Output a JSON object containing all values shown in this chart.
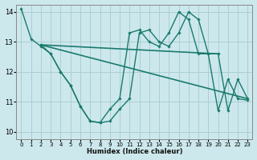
{
  "xlabel": "Humidex (Indice chaleur)",
  "background_color": "#cce8ec",
  "line_color": "#1a7a6e",
  "grid_color": "#aacfd4",
  "xlim": [
    -0.5,
    23.5
  ],
  "ylim": [
    9.75,
    14.25
  ],
  "yticks": [
    10,
    11,
    12,
    13,
    14
  ],
  "xticks": [
    0,
    1,
    2,
    3,
    4,
    5,
    6,
    7,
    8,
    9,
    10,
    11,
    12,
    13,
    14,
    15,
    16,
    17,
    18,
    19,
    20,
    21,
    22,
    23
  ],
  "line_zigzag1": {
    "x": [
      0,
      1,
      2,
      3,
      4,
      5,
      6,
      7,
      8,
      9,
      10,
      11,
      12,
      13,
      14,
      15,
      16,
      17,
      18,
      19,
      20,
      21,
      22,
      23
    ],
    "y": [
      14.1,
      13.1,
      12.85,
      12.6,
      12.0,
      11.55,
      10.85,
      10.35,
      10.3,
      10.35,
      10.75,
      11.1,
      13.3,
      13.4,
      13.0,
      12.85,
      13.3,
      14.0,
      13.75,
      12.6,
      12.6,
      10.7,
      11.75,
      11.1
    ]
  },
  "line_zigzag2": {
    "x": [
      2,
      3,
      4,
      5,
      6,
      7,
      8,
      9,
      10,
      11,
      12,
      13,
      14,
      15,
      16,
      17,
      18,
      19,
      20,
      21,
      22,
      23
    ],
    "y": [
      12.9,
      12.6,
      12.0,
      11.55,
      10.85,
      10.35,
      10.3,
      10.75,
      11.1,
      13.3,
      13.4,
      13.0,
      12.85,
      13.3,
      14.0,
      13.75,
      12.6,
      12.6,
      10.7,
      11.75,
      11.1,
      11.05
    ]
  },
  "trend_upper": {
    "x": [
      2,
      20
    ],
    "y": [
      12.9,
      12.6
    ]
  },
  "trend_lower": {
    "x": [
      2,
      23
    ],
    "y": [
      12.9,
      11.1
    ]
  }
}
